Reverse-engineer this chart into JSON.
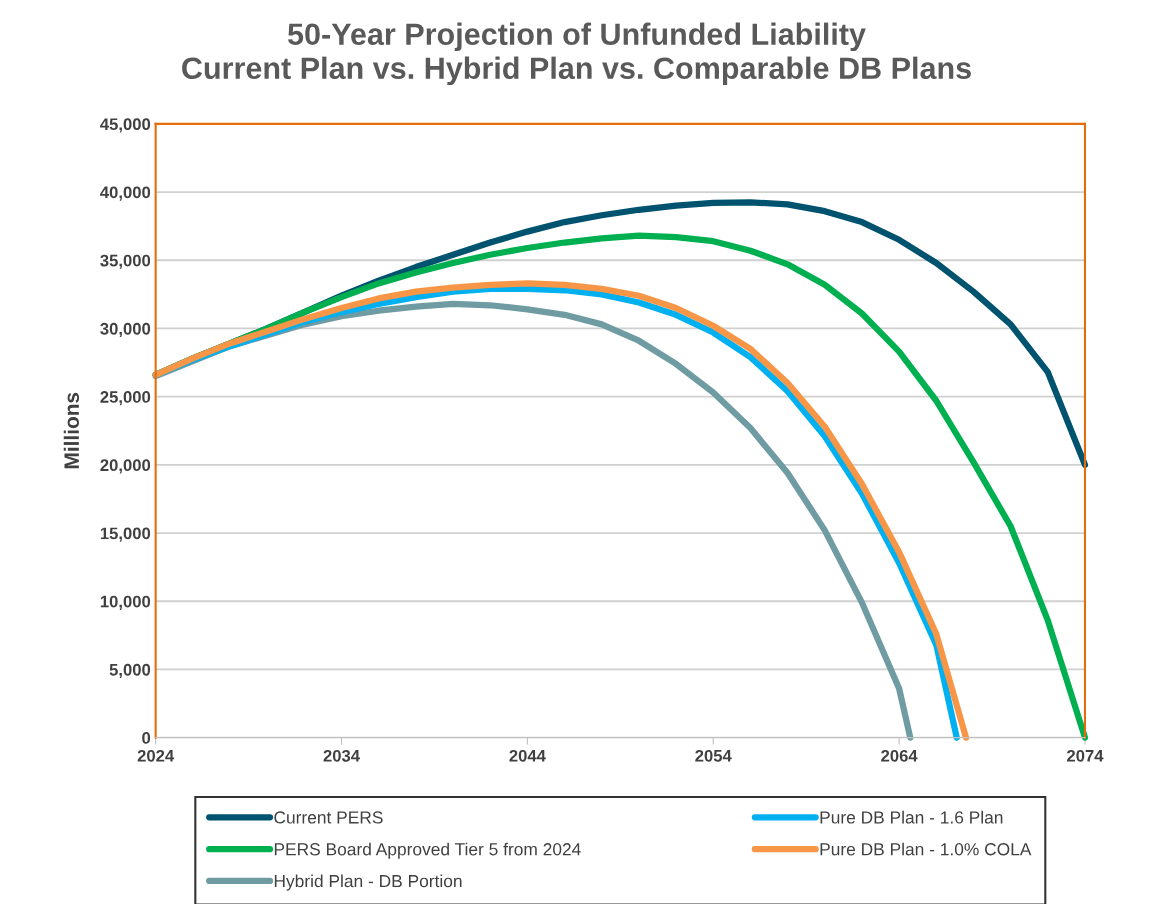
{
  "chart_data": {
    "type": "line",
    "title": "50-Year Projection of Unfunded Liability\nCurrent Plan vs. Hybrid Plan vs. Comparable DB Plans",
    "ylabel": "Millions",
    "xlim": [
      2024,
      2074
    ],
    "xticks": [
      2024,
      2034,
      2044,
      2054,
      2064,
      2074
    ],
    "ylim": [
      0,
      45000
    ],
    "yticks": [
      {
        "value": 0,
        "label": "0"
      },
      {
        "value": 5000,
        "label": "5,000"
      },
      {
        "value": 10000,
        "label": "10,000"
      },
      {
        "value": 15000,
        "label": "15,000"
      },
      {
        "value": 20000,
        "label": "20,000"
      },
      {
        "value": 25000,
        "label": "25,000"
      },
      {
        "value": 30000,
        "label": "30,000"
      },
      {
        "value": 35000,
        "label": "35,000"
      },
      {
        "value": 40000,
        "label": "40,000"
      },
      {
        "value": 45000,
        "label": "45,000"
      }
    ],
    "grid": "y",
    "legend": "bottom",
    "marker": "none",
    "line_style": "solid",
    "series": [
      {
        "name": "Current PERS",
        "color": "#00536f",
        "x": [
          2024,
          2026,
          2028,
          2030,
          2032,
          2034,
          2036,
          2038,
          2040,
          2042,
          2044,
          2046,
          2048,
          2050,
          2052,
          2054,
          2056,
          2058,
          2060,
          2062,
          2064,
          2066,
          2068,
          2070,
          2072,
          2074
        ],
        "values": [
          26600,
          27800,
          28900,
          30000,
          31200,
          32400,
          33500,
          34500,
          35400,
          36300,
          37100,
          37800,
          38300,
          38700,
          39000,
          39200,
          39250,
          39100,
          38600,
          37800,
          36500,
          34800,
          32700,
          30300,
          26800,
          20000
        ]
      },
      {
        "name": "PERS Board Approved Tier 5 from 2024",
        "color": "#00b050",
        "x": [
          2024,
          2026,
          2028,
          2030,
          2032,
          2034,
          2036,
          2038,
          2040,
          2042,
          2044,
          2046,
          2048,
          2050,
          2052,
          2054,
          2056,
          2058,
          2060,
          2062,
          2064,
          2066,
          2068,
          2070,
          2072,
          2074
        ],
        "values": [
          26600,
          27800,
          28900,
          30000,
          31200,
          32300,
          33300,
          34100,
          34800,
          35400,
          35900,
          36300,
          36600,
          36800,
          36700,
          36400,
          35700,
          34700,
          33200,
          31100,
          28300,
          24700,
          20200,
          15500,
          8600,
          0
        ]
      },
      {
        "name": "Hybrid Plan - DB Portion",
        "color": "#6f9ba3",
        "x": [
          2024,
          2026,
          2028,
          2030,
          2032,
          2034,
          2036,
          2038,
          2040,
          2042,
          2044,
          2046,
          2048,
          2050,
          2052,
          2054,
          2056,
          2058,
          2060,
          2062,
          2064,
          2064.6
        ],
        "values": [
          26500,
          27600,
          28700,
          29500,
          30300,
          30900,
          31300,
          31600,
          31800,
          31700,
          31400,
          31000,
          30300,
          29100,
          27400,
          25300,
          22700,
          19400,
          15200,
          9900,
          3600,
          0
        ]
      },
      {
        "name": "Pure DB Plan - 1.6 Plan",
        "color": "#00b0f0",
        "x": [
          2024,
          2026,
          2028,
          2030,
          2032,
          2034,
          2036,
          2038,
          2040,
          2042,
          2044,
          2046,
          2048,
          2050,
          2052,
          2054,
          2056,
          2058,
          2060,
          2062,
          2064,
          2066,
          2067.1
        ],
        "values": [
          26600,
          27700,
          28700,
          29600,
          30500,
          31200,
          31800,
          32300,
          32700,
          32900,
          32900,
          32800,
          32500,
          31900,
          31000,
          29700,
          27900,
          25400,
          22100,
          17900,
          12800,
          6800,
          0
        ]
      },
      {
        "name": "Pure DB Plan - 1.0% COLA",
        "color": "#f79646",
        "x": [
          2024,
          2026,
          2028,
          2030,
          2032,
          2034,
          2036,
          2038,
          2040,
          2042,
          2044,
          2046,
          2048,
          2050,
          2052,
          2054,
          2056,
          2058,
          2060,
          2062,
          2064,
          2066,
          2067.6
        ],
        "values": [
          26600,
          27800,
          28900,
          29800,
          30700,
          31500,
          32200,
          32700,
          33000,
          33200,
          33300,
          33200,
          32900,
          32400,
          31500,
          30200,
          28500,
          26000,
          22800,
          18600,
          13600,
          7600,
          0
        ]
      }
    ]
  }
}
